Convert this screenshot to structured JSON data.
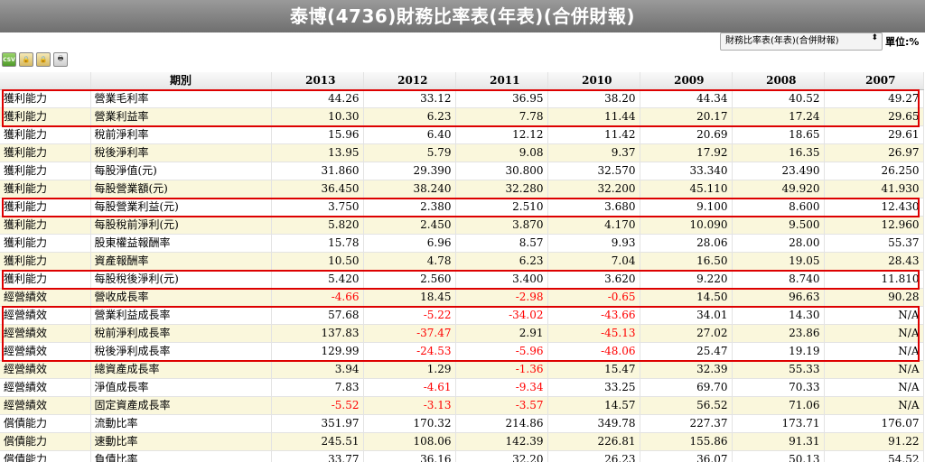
{
  "title": "泰博(4736)財務比率表(年表)(合併財報)",
  "report_select": {
    "value": "財務比率表(年表)(合併財報)",
    "arrows": "⬍"
  },
  "unit_label": "單位:%",
  "toolbar": {
    "buttons": [
      {
        "name": "csv-export-icon",
        "glyph": "CSV"
      },
      {
        "name": "lock-icon",
        "glyph": "🔒"
      },
      {
        "name": "lock-icon-2",
        "glyph": "🔒"
      },
      {
        "name": "print-icon",
        "glyph": "🖶"
      }
    ]
  },
  "table": {
    "period_label": "期別",
    "years": [
      "2013",
      "2012",
      "2011",
      "2010",
      "2009",
      "2008",
      "2007"
    ],
    "rows": [
      {
        "cat": "獲利能力",
        "item": "營業毛利率",
        "values": [
          "44.26",
          "33.12",
          "36.95",
          "38.20",
          "44.34",
          "40.52",
          "49.27"
        ]
      },
      {
        "cat": "獲利能力",
        "item": "營業利益率",
        "values": [
          "10.30",
          "6.23",
          "7.78",
          "11.44",
          "20.17",
          "17.24",
          "29.65"
        ]
      },
      {
        "cat": "獲利能力",
        "item": "稅前淨利率",
        "values": [
          "15.96",
          "6.40",
          "12.12",
          "11.42",
          "20.69",
          "18.65",
          "29.61"
        ]
      },
      {
        "cat": "獲利能力",
        "item": "稅後淨利率",
        "values": [
          "13.95",
          "5.79",
          "9.08",
          "9.37",
          "17.92",
          "16.35",
          "26.97"
        ]
      },
      {
        "cat": "獲利能力",
        "item": "每股淨值(元)",
        "values": [
          "31.860",
          "29.390",
          "30.800",
          "32.570",
          "33.340",
          "23.490",
          "26.250"
        ]
      },
      {
        "cat": "獲利能力",
        "item": "每股營業額(元)",
        "values": [
          "36.450",
          "38.240",
          "32.280",
          "32.200",
          "45.110",
          "49.920",
          "41.930"
        ]
      },
      {
        "cat": "獲利能力",
        "item": "每股營業利益(元)",
        "values": [
          "3.750",
          "2.380",
          "2.510",
          "3.680",
          "9.100",
          "8.600",
          "12.430"
        ]
      },
      {
        "cat": "獲利能力",
        "item": "每股稅前淨利(元)",
        "values": [
          "5.820",
          "2.450",
          "3.870",
          "4.170",
          "10.090",
          "9.500",
          "12.960"
        ]
      },
      {
        "cat": "獲利能力",
        "item": "股東權益報酬率",
        "values": [
          "15.78",
          "6.96",
          "8.57",
          "9.93",
          "28.06",
          "28.00",
          "55.37"
        ]
      },
      {
        "cat": "獲利能力",
        "item": "資產報酬率",
        "values": [
          "10.50",
          "4.78",
          "6.23",
          "7.04",
          "16.50",
          "19.05",
          "28.43"
        ]
      },
      {
        "cat": "獲利能力",
        "item": "每股稅後淨利(元)",
        "values": [
          "5.420",
          "2.560",
          "3.400",
          "3.620",
          "9.220",
          "8.740",
          "11.810"
        ]
      },
      {
        "cat": "經營績效",
        "item": "營收成長率",
        "values": [
          "-4.66",
          "18.45",
          "-2.98",
          "-0.65",
          "14.50",
          "96.63",
          "90.28"
        ]
      },
      {
        "cat": "經營績效",
        "item": "營業利益成長率",
        "values": [
          "57.68",
          "-5.22",
          "-34.02",
          "-43.66",
          "34.01",
          "14.30",
          "N/A"
        ]
      },
      {
        "cat": "經營績效",
        "item": "稅前淨利成長率",
        "values": [
          "137.83",
          "-37.47",
          "2.91",
          "-45.13",
          "27.02",
          "23.86",
          "N/A"
        ]
      },
      {
        "cat": "經營績效",
        "item": "稅後淨利成長率",
        "values": [
          "129.99",
          "-24.53",
          "-5.96",
          "-48.06",
          "25.47",
          "19.19",
          "N/A"
        ]
      },
      {
        "cat": "經營績效",
        "item": "總資產成長率",
        "values": [
          "3.94",
          "1.29",
          "-1.36",
          "15.47",
          "32.39",
          "55.33",
          "N/A"
        ]
      },
      {
        "cat": "經營績效",
        "item": "淨值成長率",
        "values": [
          "7.83",
          "-4.61",
          "-9.34",
          "33.25",
          "69.70",
          "70.33",
          "N/A"
        ]
      },
      {
        "cat": "經營績效",
        "item": "固定資產成長率",
        "values": [
          "-5.52",
          "-3.13",
          "-3.57",
          "14.57",
          "56.52",
          "71.06",
          "N/A"
        ]
      },
      {
        "cat": "償債能力",
        "item": "流動比率",
        "values": [
          "351.97",
          "170.32",
          "214.86",
          "349.78",
          "227.37",
          "173.71",
          "176.07"
        ]
      },
      {
        "cat": "償債能力",
        "item": "速動比率",
        "values": [
          "245.51",
          "108.06",
          "142.39",
          "226.81",
          "155.86",
          "91.31",
          "91.22"
        ]
      },
      {
        "cat": "償債能力",
        "item": "負債比率",
        "values": [
          "33.77",
          "36.16",
          "32.20",
          "26.23",
          "36.07",
          "50.13",
          "54.52"
        ]
      }
    ]
  },
  "highlight_color": "#dd0000",
  "negative_color": "#ff0000"
}
